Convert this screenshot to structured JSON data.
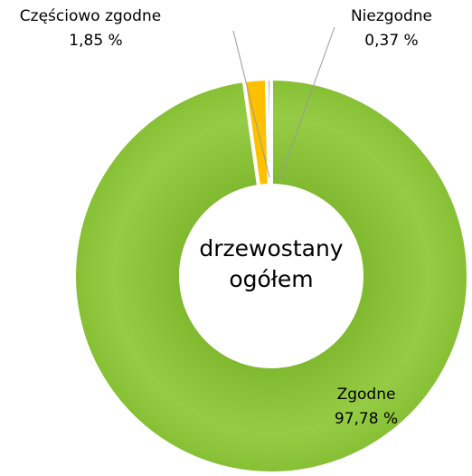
{
  "chart_data": {
    "type": "donut",
    "categories": [
      "Zgodne",
      "Częściowo zgodne",
      "Niezgodne"
    ],
    "values": [
      97.78,
      1.85,
      0.37
    ],
    "value_labels": [
      "97,78 %",
      "1,85 %",
      "0,37 %"
    ],
    "colors": [
      "#8fc73e",
      "#ffc000",
      "#a6a6a6"
    ],
    "center_label": "drzewostany ogółem"
  }
}
